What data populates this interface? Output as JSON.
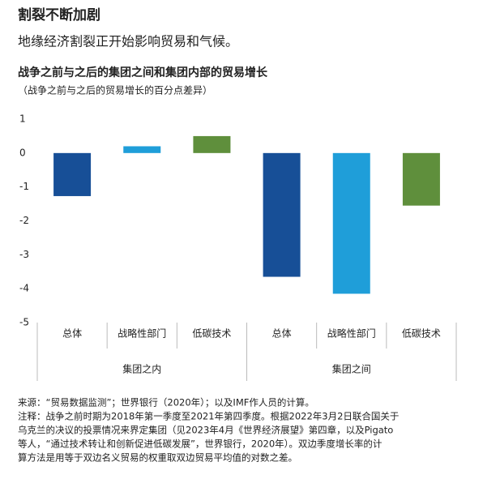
{
  "header": {
    "title": "割裂不断加剧",
    "subtitle": "地缘经济割裂正开始影响贸易和气候。"
  },
  "chart_data": {
    "type": "bar",
    "title": "战争之前与之后的集团之间和集团内部的贸易增长",
    "subtitle": "（战争之前与之后的贸易增长的百分点差异）",
    "groups": [
      {
        "name": "集团之内",
        "categories": [
          "总体",
          "战略性部门",
          "低碳技术"
        ],
        "values": [
          -1.27,
          0.2,
          0.5
        ],
        "colors": [
          "#174f97",
          "#1f9ed9",
          "#5f8f3c"
        ]
      },
      {
        "name": "集团之间",
        "categories": [
          "总体",
          "战略性部门",
          "低碳技术"
        ],
        "values": [
          -3.65,
          -4.15,
          -1.55
        ],
        "colors": [
          "#174f97",
          "#1f9ed9",
          "#5f8f3c"
        ]
      }
    ],
    "ylim": [
      -5,
      1
    ],
    "yticks": [
      1,
      0,
      -1,
      -2,
      -3,
      -4,
      -5
    ],
    "grid": false
  },
  "footnotes": [
    "来源：“贸易数据监测”；世界银行（2020年）；以及IMF作人员的计算。",
    "注释：战争之前时期为2018年第一季度至2021年第四季度。根据2022年3月2日联合国关于",
    "乌克兰的决议的投票情况来界定集团（见2023年4月《世界经济展望》第四章，以及Pigato",
    "等人，“通过技术转让和创新促进低碳发展”，世界银行，2020年）。双边季度增长率的计",
    "算方法是用等于双边名义贸易的权重取双边贸易平均值的对数之差。"
  ]
}
